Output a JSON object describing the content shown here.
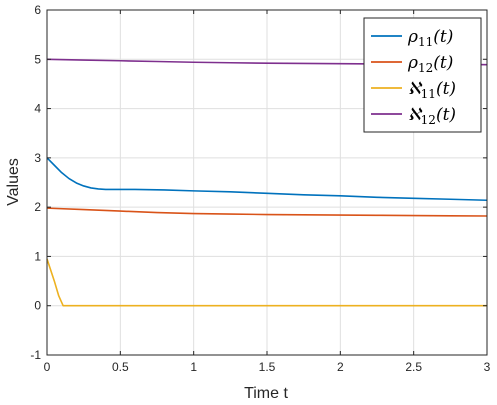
{
  "chart_data": {
    "type": "line",
    "title": "",
    "xlabel": "Time t",
    "ylabel": "Values",
    "xlim": [
      0,
      3
    ],
    "ylim": [
      -1,
      6
    ],
    "xticks": [
      0,
      0.5,
      1,
      1.5,
      2,
      2.5,
      3
    ],
    "xtick_labels": [
      "0",
      "0.5",
      "1",
      "1.5",
      "2",
      "2.5",
      "3"
    ],
    "yticks": [
      -1,
      0,
      1,
      2,
      3,
      4,
      5,
      6
    ],
    "ytick_labels": [
      "-1",
      "0",
      "1",
      "2",
      "3",
      "4",
      "5",
      "6"
    ],
    "grid": true,
    "legend_position": "top-right",
    "series": [
      {
        "name": "ρ11(t)",
        "label_base": "ρ",
        "label_sub": "11",
        "label_arg": "(t)",
        "color": "#0072BD",
        "x": [
          0,
          0.05,
          0.1,
          0.15,
          0.2,
          0.25,
          0.3,
          0.35,
          0.4,
          0.45,
          0.5,
          0.6,
          0.7,
          0.8,
          1.0,
          1.25,
          1.5,
          1.75,
          2.0,
          2.25,
          2.5,
          2.75,
          3.0
        ],
        "y": [
          3.0,
          2.85,
          2.7,
          2.58,
          2.49,
          2.43,
          2.39,
          2.37,
          2.36,
          2.36,
          2.36,
          2.36,
          2.355,
          2.35,
          2.33,
          2.31,
          2.28,
          2.25,
          2.23,
          2.2,
          2.18,
          2.16,
          2.14
        ]
      },
      {
        "name": "ρ12(t)",
        "label_base": "ρ",
        "label_sub": "12",
        "label_arg": "(t)",
        "color": "#D95319",
        "x": [
          0,
          0.25,
          0.5,
          0.75,
          1.0,
          1.25,
          1.5,
          1.75,
          2.0,
          2.25,
          2.5,
          2.75,
          3.0
        ],
        "y": [
          1.98,
          1.95,
          1.92,
          1.89,
          1.87,
          1.86,
          1.85,
          1.845,
          1.84,
          1.835,
          1.83,
          1.825,
          1.82
        ]
      },
      {
        "name": "ℵ11(t)",
        "label_base": "ℵ",
        "label_sub": "11",
        "label_arg": "(t)",
        "color": "#EDB120",
        "x": [
          0,
          0.05,
          0.08,
          0.11,
          0.5,
          1.0,
          1.5,
          2.0,
          2.5,
          3.0
        ],
        "y": [
          0.95,
          0.5,
          0.2,
          0.0,
          0.0,
          0.0,
          0.0,
          0.0,
          0.0,
          0.0
        ]
      },
      {
        "name": "ℵ12(t)",
        "label_base": "ℵ",
        "label_sub": "12",
        "label_arg": "(t)",
        "color": "#7E2F8E",
        "x": [
          0,
          0.25,
          0.5,
          0.75,
          1.0,
          1.25,
          1.5,
          1.75,
          2.0,
          2.25,
          2.5,
          2.75,
          3.0
        ],
        "y": [
          5.0,
          4.985,
          4.97,
          4.955,
          4.94,
          4.93,
          4.92,
          4.915,
          4.91,
          4.905,
          4.9,
          4.9,
          4.89
        ]
      }
    ]
  }
}
